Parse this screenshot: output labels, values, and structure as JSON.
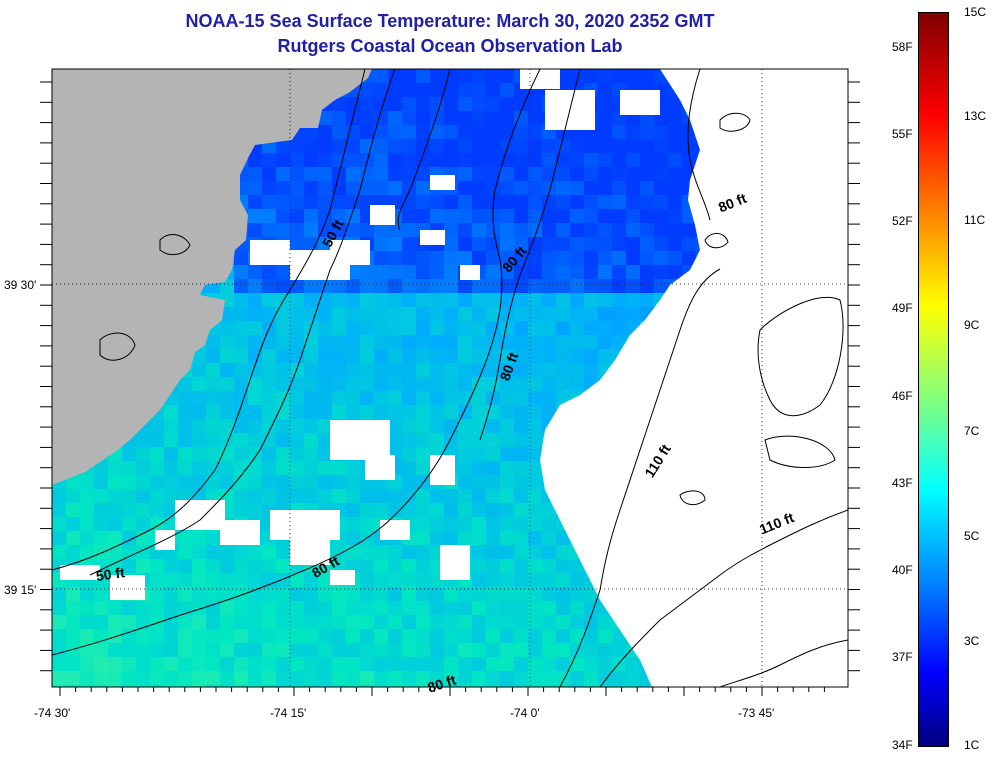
{
  "header": {
    "title": "NOAA-15 Sea Surface Temperature:  March 30, 2020 2352 GMT",
    "subtitle": "Rutgers Coastal Ocean Observation Lab"
  },
  "map": {
    "lon_labels": [
      "-74 30'",
      "-74 15'",
      "-74 0'",
      "-73 45'"
    ],
    "lat_labels": [
      "39 30'",
      "39 15'"
    ],
    "depth_labels": [
      {
        "text": "50 ft",
        "name": "depth-label-50ft-north"
      },
      {
        "text": "80 ft",
        "name": "depth-label-80ft-northeast"
      },
      {
        "text": "80 ft",
        "name": "depth-label-80ft-shelf"
      },
      {
        "text": "80 ft",
        "name": "depth-label-80ft-central"
      },
      {
        "text": "110 ft",
        "name": "depth-label-110ft-central"
      },
      {
        "text": "110 ft",
        "name": "depth-label-110ft-east"
      },
      {
        "text": "50 ft",
        "name": "depth-label-50ft-south"
      },
      {
        "text": "80 ft",
        "name": "depth-label-80ft-south"
      },
      {
        "text": "80 ft",
        "name": "depth-label-80ft-bottom"
      }
    ],
    "colors": {
      "land": "#b4b4b4",
      "cloud": "#ffffff",
      "contour": "#000000",
      "grid": "#000000"
    }
  },
  "colorbar": {
    "fahrenheit_labels": [
      "58F",
      "55F",
      "52F",
      "49F",
      "46F",
      "43F",
      "40F",
      "37F",
      "34F"
    ],
    "celsius_labels": [
      "15C",
      "13C",
      "11C",
      "9C",
      "7C",
      "5C",
      "3C",
      "1C"
    ],
    "colors": [
      "#800000",
      "#ff0000",
      "#ff8000",
      "#ffff00",
      "#80ff80",
      "#00ffff",
      "#0080ff",
      "#0000ff",
      "#000080"
    ]
  }
}
